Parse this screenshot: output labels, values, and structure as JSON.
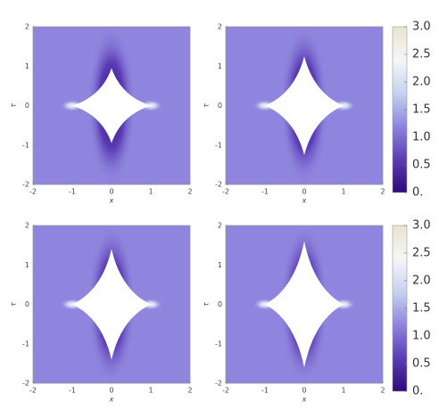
{
  "chart_data": [
    {
      "type": "density",
      "xlabel": "x",
      "ylabel": "τ",
      "xlim": [
        -2,
        2
      ],
      "ylim": [
        -2,
        2
      ],
      "xticks": [
        -2,
        -1,
        0,
        1,
        2
      ],
      "yticks": [
        -2,
        -1,
        0,
        1,
        2
      ],
      "colors": [
        "#2d0a78",
        "#5b3cb5",
        "#8f84de",
        "#c6d3ef",
        "#f6f6f6",
        "#e9e3cf"
      ],
      "boundary": {
        "x": [
          1,
          0,
          -1,
          0
        ],
        "y": [
          0,
          0.95,
          0,
          -0.95
        ]
      }
    },
    {
      "type": "density",
      "xlabel": "x",
      "ylabel": "τ",
      "xlim": [
        -2,
        2
      ],
      "ylim": [
        -2,
        2
      ],
      "xticks": [
        -2,
        -1,
        0,
        1,
        2
      ],
      "yticks": [
        -2,
        -1,
        0,
        1,
        2
      ],
      "colors": [
        "#2d0a78",
        "#5b3cb5",
        "#8f84de",
        "#c6d3ef",
        "#f6f6f6",
        "#e9e3cf"
      ],
      "boundary": {
        "x": [
          1,
          0,
          -1,
          0
        ],
        "y": [
          0,
          1.25,
          0,
          -1.25
        ]
      },
      "colorbar": {
        "clim": [
          0,
          3
        ],
        "ticks": [
          {
            "value": 0,
            "label": "0."
          },
          0.5,
          {
            "value": 1,
            "label": "1.0"
          },
          1.5,
          {
            "value": 2,
            "label": "2.0"
          },
          2.5,
          {
            "value": 3,
            "label": "3.0"
          }
        ]
      }
    },
    {
      "type": "density",
      "xlabel": "x",
      "ylabel": "τ",
      "xlim": [
        -2,
        2
      ],
      "ylim": [
        -2,
        2
      ],
      "xticks": [
        -2,
        -1,
        0,
        1,
        2
      ],
      "yticks": [
        -2,
        -1,
        0,
        1,
        2
      ],
      "colors": [
        "#2d0a78",
        "#5b3cb5",
        "#8f84de",
        "#c6d3ef",
        "#f6f6f6",
        "#e9e3cf"
      ],
      "boundary": {
        "x": [
          1,
          0,
          -1,
          0
        ],
        "y": [
          0,
          1.4,
          0,
          -1.4
        ]
      }
    },
    {
      "type": "density",
      "xlabel": "x",
      "ylabel": "τ",
      "xlim": [
        -2,
        2
      ],
      "ylim": [
        -2,
        2
      ],
      "xticks": [
        -2,
        -1,
        0,
        1,
        2
      ],
      "yticks": [
        -2,
        -1,
        0,
        1,
        2
      ],
      "colors": [
        "#2d0a78",
        "#5b3cb5",
        "#8f84de",
        "#c6d3ef",
        "#f6f6f6",
        "#e9e3cf"
      ],
      "boundary": {
        "x": [
          1,
          0,
          -1,
          0
        ],
        "y": [
          0,
          1.6,
          0,
          -1.6
        ]
      },
      "colorbar": {
        "clim": [
          0,
          3
        ],
        "ticks": [
          {
            "value": 0,
            "label": "0."
          },
          0.5,
          {
            "value": 1,
            "label": "1.0"
          },
          1.5,
          {
            "value": 2,
            "label": "2.0"
          },
          2.5,
          {
            "value": 3,
            "label": "3.0"
          }
        ]
      }
    }
  ]
}
